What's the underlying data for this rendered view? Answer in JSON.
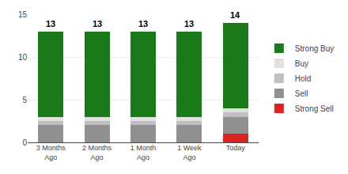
{
  "chart_data": {
    "type": "bar",
    "stacked": true,
    "categories": [
      "3 Months\nAgo",
      "2 Months\nAgo",
      "1 Month\nAgo",
      "1 Week\nAgo",
      "Today"
    ],
    "series": [
      {
        "name": "Strong Sell",
        "color": "#dd2222",
        "values": [
          0,
          0,
          0,
          0,
          1
        ]
      },
      {
        "name": "Sell",
        "color": "#909090",
        "values": [
          2,
          2,
          2,
          2,
          2
        ]
      },
      {
        "name": "Hold",
        "color": "#c0c0c0",
        "values": [
          0.5,
          0.5,
          0.5,
          0.5,
          0.5
        ]
      },
      {
        "name": "Buy",
        "color": "#e0e0e0",
        "values": [
          0.5,
          0.5,
          0.5,
          0.5,
          0.5
        ]
      },
      {
        "name": "Strong Buy",
        "color": "#1a7a1a",
        "values": [
          10,
          10,
          10,
          10,
          10
        ]
      }
    ],
    "totals": [
      13,
      13,
      13,
      13,
      14
    ],
    "ylim": [
      0,
      15
    ],
    "yticks": [
      0,
      5,
      10,
      15
    ],
    "grid": true,
    "legend": "right"
  }
}
